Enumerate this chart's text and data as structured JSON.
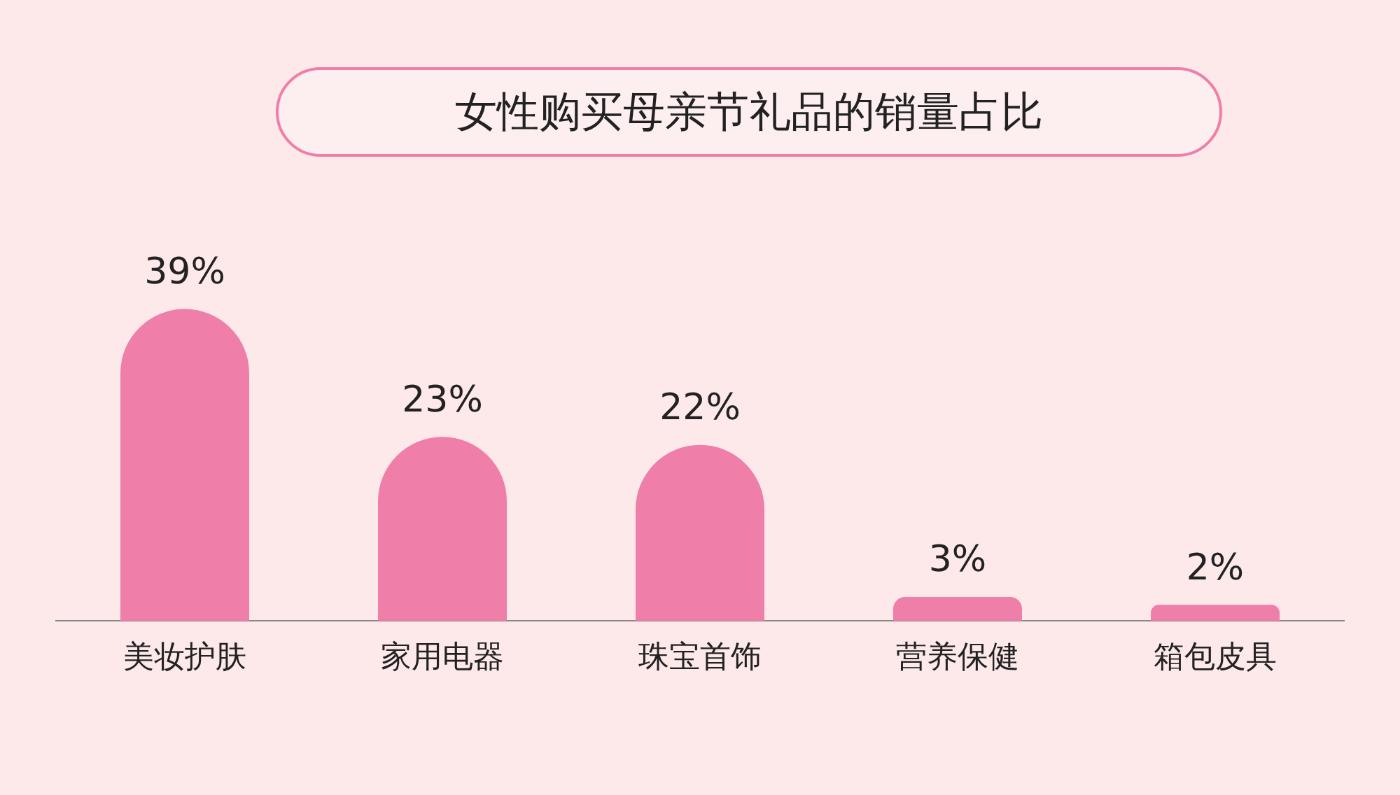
{
  "chart_data": {
    "type": "bar",
    "title": "女性购买母亲节礼品的销量占比",
    "categories": [
      "美妆护肤",
      "家用电器",
      "珠宝首饰",
      "营养保健",
      "箱包皮具"
    ],
    "values": [
      39,
      23,
      22,
      3,
      2
    ],
    "color": "#ef7ea8",
    "value_labels": [
      "39%",
      "23%",
      "22%",
      "3%",
      "2%"
    ],
    "grid": false
  }
}
